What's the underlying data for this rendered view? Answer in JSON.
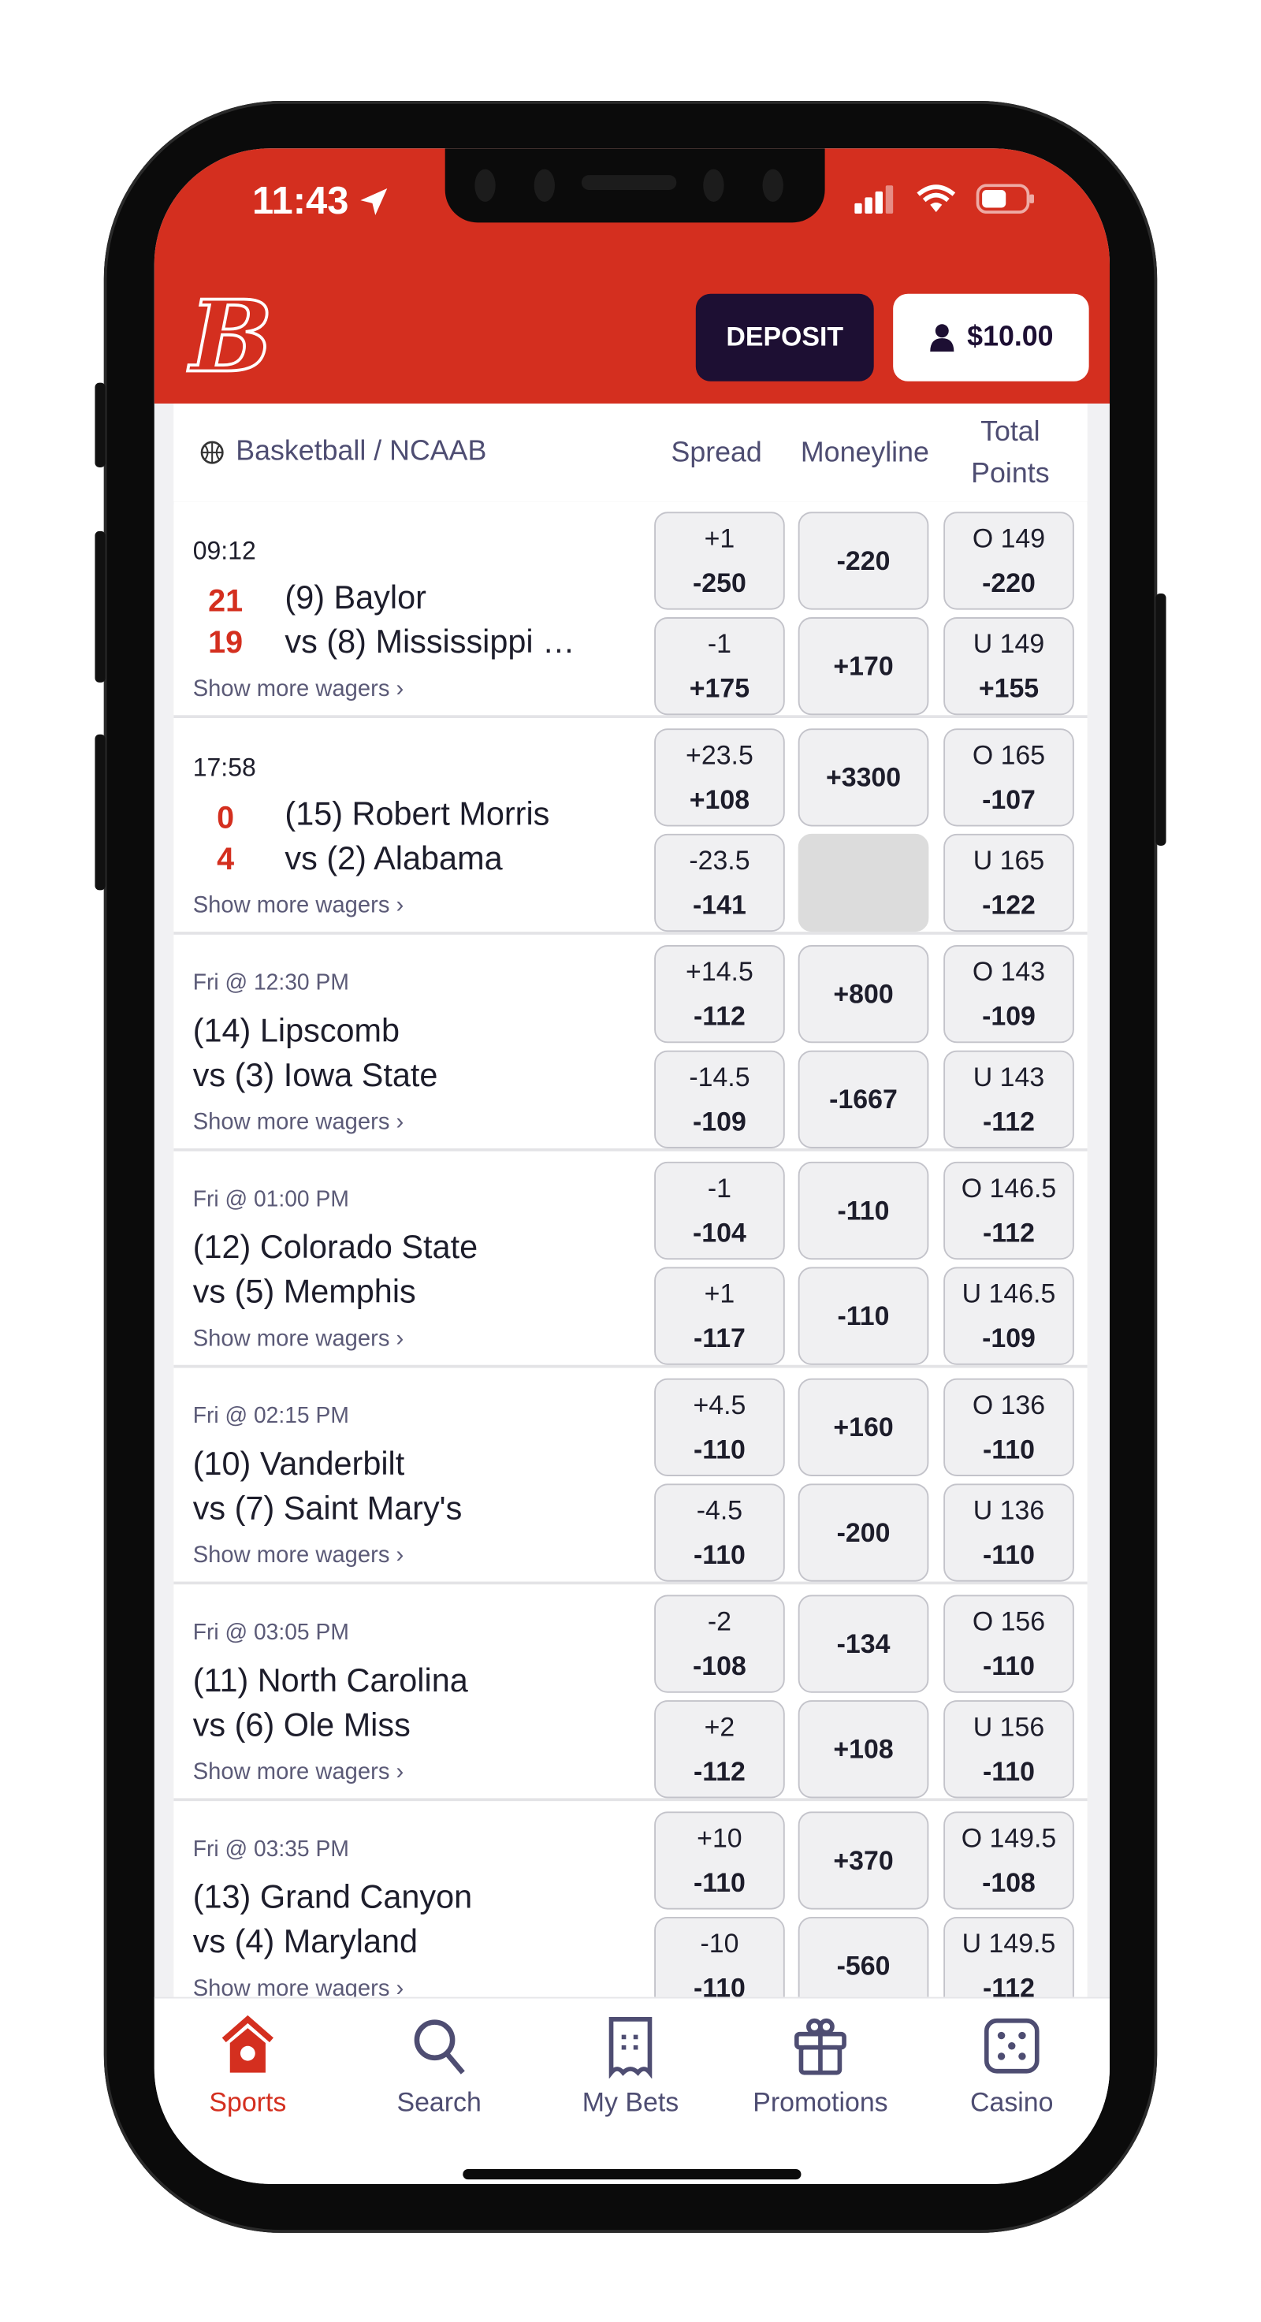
{
  "status_bar": {
    "time": "11:43"
  },
  "header": {
    "logo_text": "B",
    "deposit_label": "DEPOSIT",
    "balance": "$10.00"
  },
  "colors": {
    "brand_red": "#d42f1f",
    "navy": "#1d0f33",
    "text_purple": "#4e4d72"
  },
  "columns": {
    "league": "Basketball / NCAAB",
    "spread": "Spread",
    "moneyline": "Moneyline",
    "total_line1": "Total",
    "total_line2": "Points"
  },
  "show_more_label": "Show more wagers ›",
  "games": [
    {
      "time": "09:12",
      "live": true,
      "score_home": "21",
      "score_away": "19",
      "team1": "(9) Baylor",
      "team2": "vs (8) Mississippi …",
      "spread": [
        [
          "+1",
          "-250"
        ],
        [
          "-1",
          "+175"
        ]
      ],
      "moneyline": [
        "-220",
        "+170"
      ],
      "total": [
        [
          "O 149",
          "-220"
        ],
        [
          "U 149",
          "+155"
        ]
      ]
    },
    {
      "time": "17:58",
      "live": true,
      "score_home": "0",
      "score_away": "4",
      "team1": "(15) Robert Morris",
      "team2": "vs (2) Alabama",
      "spread": [
        [
          "+23.5",
          "+108"
        ],
        [
          "-23.5",
          "-141"
        ]
      ],
      "moneyline": [
        "+3300",
        ""
      ],
      "total": [
        [
          "O 165",
          "-107"
        ],
        [
          "U 165",
          "-122"
        ]
      ]
    },
    {
      "time": "Fri @ 12:30 PM",
      "live": false,
      "team1": "(14) Lipscomb",
      "team2": "vs (3) Iowa State",
      "spread": [
        [
          "+14.5",
          "-112"
        ],
        [
          "-14.5",
          "-109"
        ]
      ],
      "moneyline": [
        "+800",
        "-1667"
      ],
      "total": [
        [
          "O 143",
          "-109"
        ],
        [
          "U 143",
          "-112"
        ]
      ]
    },
    {
      "time": "Fri @ 01:00 PM",
      "live": false,
      "team1": "(12) Colorado State",
      "team2": "vs (5) Memphis",
      "spread": [
        [
          "-1",
          "-104"
        ],
        [
          "+1",
          "-117"
        ]
      ],
      "moneyline": [
        "-110",
        "-110"
      ],
      "total": [
        [
          "O 146.5",
          "-112"
        ],
        [
          "U 146.5",
          "-109"
        ]
      ]
    },
    {
      "time": "Fri @ 02:15 PM",
      "live": false,
      "team1": "(10) Vanderbilt",
      "team2": "vs (7) Saint Mary's",
      "spread": [
        [
          "+4.5",
          "-110"
        ],
        [
          "-4.5",
          "-110"
        ]
      ],
      "moneyline": [
        "+160",
        "-200"
      ],
      "total": [
        [
          "O 136",
          "-110"
        ],
        [
          "U 136",
          "-110"
        ]
      ]
    },
    {
      "time": "Fri @ 03:05 PM",
      "live": false,
      "team1": "(11) North Carolina",
      "team2": "vs (6) Ole Miss",
      "spread": [
        [
          "-2",
          "-108"
        ],
        [
          "+2",
          "-112"
        ]
      ],
      "moneyline": [
        "-134",
        "+108"
      ],
      "total": [
        [
          "O 156",
          "-110"
        ],
        [
          "U 156",
          "-110"
        ]
      ]
    },
    {
      "time": "Fri @ 03:35 PM",
      "live": false,
      "team1": "(13) Grand Canyon",
      "team2": "vs (4) Maryland",
      "spread": [
        [
          "+10",
          "-110"
        ],
        [
          "-10",
          "-110"
        ]
      ],
      "moneyline": [
        "+370",
        "-560"
      ],
      "total": [
        [
          "O 149.5",
          "-108"
        ],
        [
          "U 149.5",
          "-112"
        ]
      ]
    }
  ],
  "nav": [
    {
      "label": "Sports",
      "icon": "home-icon",
      "active": true
    },
    {
      "label": "Search",
      "icon": "search-icon",
      "active": false
    },
    {
      "label": "My Bets",
      "icon": "receipt-icon",
      "active": false
    },
    {
      "label": "Promotions",
      "icon": "gift-icon",
      "active": false
    },
    {
      "label": "Casino",
      "icon": "dice-icon",
      "active": false
    }
  ]
}
